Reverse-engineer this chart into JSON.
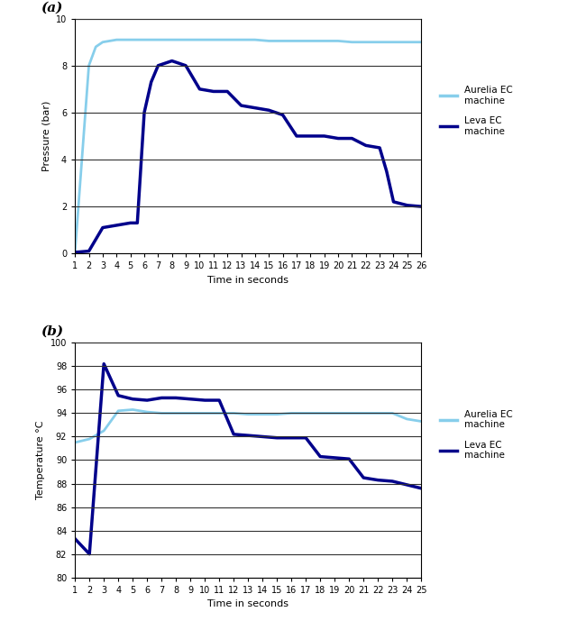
{
  "aurelia_pressure_x": [
    1,
    2,
    2.5,
    3,
    4,
    5,
    6,
    7,
    8,
    9,
    10,
    11,
    12,
    13,
    14,
    15,
    16,
    17,
    18,
    19,
    20,
    21,
    22,
    23,
    24,
    25,
    26
  ],
  "aurelia_pressure_y": [
    0.05,
    8.0,
    8.8,
    9.0,
    9.1,
    9.1,
    9.1,
    9.1,
    9.1,
    9.1,
    9.1,
    9.1,
    9.1,
    9.1,
    9.1,
    9.05,
    9.05,
    9.05,
    9.05,
    9.05,
    9.05,
    9.0,
    9.0,
    9.0,
    9.0,
    9.0,
    9.0
  ],
  "leva_pressure_x": [
    1,
    2,
    3,
    4,
    5,
    5.5,
    6,
    6.5,
    7,
    8,
    9,
    10,
    11,
    12,
    13,
    14,
    15,
    16,
    17,
    18,
    19,
    20,
    21,
    22,
    23,
    23.5,
    24,
    25,
    26
  ],
  "leva_pressure_y": [
    0.05,
    0.1,
    1.1,
    1.2,
    1.3,
    1.3,
    6.0,
    7.3,
    8.0,
    8.2,
    8.0,
    7.0,
    6.9,
    6.9,
    6.3,
    6.2,
    6.1,
    5.9,
    5.0,
    5.0,
    5.0,
    4.9,
    4.9,
    4.6,
    4.5,
    3.5,
    2.2,
    2.05,
    2.0
  ],
  "aurelia_temp_x": [
    1,
    2,
    3,
    4,
    5,
    6,
    7,
    8,
    9,
    10,
    11,
    12,
    13,
    14,
    15,
    16,
    17,
    18,
    19,
    20,
    21,
    22,
    23,
    24,
    25
  ],
  "aurelia_temp_y": [
    91.5,
    91.8,
    92.5,
    94.2,
    94.3,
    94.1,
    94.0,
    94.0,
    94.0,
    94.0,
    94.0,
    94.0,
    93.9,
    93.9,
    93.9,
    94.0,
    94.0,
    94.0,
    94.0,
    94.0,
    94.0,
    94.0,
    94.0,
    93.5,
    93.3
  ],
  "leva_temp_x": [
    1,
    2,
    3,
    4,
    5,
    6,
    7,
    8,
    9,
    10,
    11,
    12,
    13,
    14,
    15,
    16,
    17,
    18,
    19,
    20,
    21,
    22,
    23,
    24,
    25
  ],
  "leva_temp_y": [
    83.3,
    82.0,
    98.2,
    95.5,
    95.2,
    95.1,
    95.3,
    95.3,
    95.2,
    95.1,
    95.1,
    92.2,
    92.1,
    92.0,
    91.9,
    91.9,
    91.9,
    90.3,
    90.2,
    90.1,
    88.5,
    88.3,
    88.2,
    87.9,
    87.6
  ],
  "aurelia_color": "#87CEEB",
  "leva_color": "#00008B",
  "pressure_xlim": [
    1,
    26
  ],
  "pressure_ylim": [
    0,
    10
  ],
  "pressure_xticks": [
    1,
    2,
    3,
    4,
    5,
    6,
    7,
    8,
    9,
    10,
    11,
    12,
    13,
    14,
    15,
    16,
    17,
    18,
    19,
    20,
    21,
    22,
    23,
    24,
    25,
    26
  ],
  "pressure_yticks": [
    0,
    2,
    4,
    6,
    8,
    10
  ],
  "temp_xlim": [
    1,
    25
  ],
  "temp_ylim": [
    80,
    100
  ],
  "temp_xticks": [
    1,
    2,
    3,
    4,
    5,
    6,
    7,
    8,
    9,
    10,
    11,
    12,
    13,
    14,
    15,
    16,
    17,
    18,
    19,
    20,
    21,
    22,
    23,
    24,
    25
  ],
  "temp_yticks": [
    80,
    82,
    84,
    86,
    88,
    90,
    92,
    94,
    96,
    98,
    100
  ],
  "pressure_ylabel": "Pressure (bar)",
  "temp_ylabel": "Temperature °C",
  "xlabel": "Time in seconds",
  "legend_aurelia": "Aurelia EC\nmachine",
  "legend_leva": "Leva EC\nmachine",
  "label_a": "(a)",
  "label_b": "(b)"
}
